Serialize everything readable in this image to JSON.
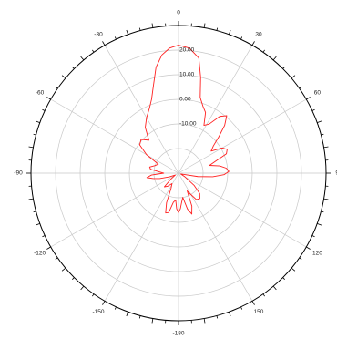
{
  "colors": {
    "background": "#ffffff",
    "outer_circle": "#000000",
    "grid": "#c8c8c8",
    "trace": "#ff2020",
    "text": "#222222"
  },
  "chart_data": {
    "type": "polar-line",
    "title": "",
    "angle_unit": "degrees",
    "angle_zero": "top",
    "angle_direction": "clockwise",
    "angle_ticks": [
      0,
      30,
      60,
      90,
      120,
      150,
      180,
      -150,
      -120,
      -90,
      -60,
      -30
    ],
    "angle_tick_labels": [
      "0",
      "30",
      "60",
      "90",
      "120",
      "150",
      "-180",
      "-150",
      "-120",
      "-90",
      "-60",
      "-30"
    ],
    "r_min": -30,
    "r_max": 30,
    "r_ticks": [
      -20,
      -10,
      0,
      10,
      20
    ],
    "r_tick_labels": [
      "-20.00",
      "-10.00",
      "0.00",
      "10.00",
      "20.00"
    ],
    "grid": true,
    "series": [
      {
        "name": "",
        "points": [
          {
            "theta": 0,
            "r": 22.0
          },
          {
            "theta": 5,
            "r": 21.0
          },
          {
            "theta": 10,
            "r": 17.5
          },
          {
            "theta": 13,
            "r": 10.0
          },
          {
            "theta": 16,
            "r": 2.0
          },
          {
            "theta": 20,
            "r": -1.0
          },
          {
            "theta": 24,
            "r": -3.0
          },
          {
            "theta": 28,
            "r": -8.0
          },
          {
            "theta": 32,
            "r": -6.5
          },
          {
            "theta": 36,
            "r": -1.5
          },
          {
            "theta": 40,
            "r": 0.5
          },
          {
            "theta": 44,
            "r": -3.0
          },
          {
            "theta": 48,
            "r": -8.0
          },
          {
            "theta": 52,
            "r": -12.0
          },
          {
            "theta": 56,
            "r": -14.0
          },
          {
            "theta": 60,
            "r": -9.5
          },
          {
            "theta": 64,
            "r": -8.0
          },
          {
            "theta": 68,
            "r": -9.0
          },
          {
            "theta": 72,
            "r": -14.0
          },
          {
            "theta": 76,
            "r": -17.0
          },
          {
            "theta": 80,
            "r": -13.0
          },
          {
            "theta": 84,
            "r": -10.5
          },
          {
            "theta": 88,
            "r": -9.5
          },
          {
            "theta": 92,
            "r": -11.5
          },
          {
            "theta": 96,
            "r": -16.0
          },
          {
            "theta": 100,
            "r": -22.0
          },
          {
            "theta": 104,
            "r": -28.0
          },
          {
            "theta": 110,
            "r": -29.0
          },
          {
            "theta": 120,
            "r": -27.0
          },
          {
            "theta": 128,
            "r": -22.0
          },
          {
            "theta": 134,
            "r": -18.0
          },
          {
            "theta": 140,
            "r": -16.5
          },
          {
            "theta": 146,
            "r": -17.0
          },
          {
            "theta": 150,
            "r": -20.0
          },
          {
            "theta": 154,
            "r": -22.0
          },
          {
            "theta": 158,
            "r": -15.5
          },
          {
            "theta": 162,
            "r": -12.5
          },
          {
            "theta": 166,
            "r": -15.0
          },
          {
            "theta": 170,
            "r": -20.0
          },
          {
            "theta": 174,
            "r": -18.0
          },
          {
            "theta": 177,
            "r": -15.5
          },
          {
            "theta": 180,
            "r": -14.0
          },
          {
            "theta": 183,
            "r": -15.5
          },
          {
            "theta": 186,
            "r": -19.0
          },
          {
            "theta": 190,
            "r": -18.0
          },
          {
            "theta": 194,
            "r": -13.5
          },
          {
            "theta": 198,
            "r": -13.0
          },
          {
            "theta": 202,
            "r": -17.0
          },
          {
            "theta": 206,
            "r": -23.0
          },
          {
            "theta": 212,
            "r": -25.0
          },
          {
            "theta": 220,
            "r": -23.0
          },
          {
            "theta": 226,
            "r": -22.0
          },
          {
            "theta": 232,
            "r": -26.0
          },
          {
            "theta": 240,
            "r": -28.5
          },
          {
            "theta": 248,
            "r": -26.0
          },
          {
            "theta": 254,
            "r": -22.0
          },
          {
            "theta": 258,
            "r": -19.5
          },
          {
            "theta": 262,
            "r": -17.0
          },
          {
            "theta": 266,
            "r": -19.0
          },
          {
            "theta": 270,
            "r": -24.0
          },
          {
            "theta": 274,
            "r": -22.0
          },
          {
            "theta": 278,
            "r": -18.5
          },
          {
            "theta": 282,
            "r": -18.0
          },
          {
            "theta": 288,
            "r": -20.0
          },
          {
            "theta": 294,
            "r": -21.0
          },
          {
            "theta": 300,
            "r": -15.0
          },
          {
            "theta": 306,
            "r": -10.5
          },
          {
            "theta": 312,
            "r": -9.5
          },
          {
            "theta": 318,
            "r": -12.0
          },
          {
            "theta": 324,
            "r": -7.0
          },
          {
            "theta": 330,
            "r": -4.0
          },
          {
            "theta": 336,
            "r": -1.0
          },
          {
            "theta": 340,
            "r": 2.0
          },
          {
            "theta": 344,
            "r": 7.0
          },
          {
            "theta": 348,
            "r": 14.0
          },
          {
            "theta": 352,
            "r": 18.5
          },
          {
            "theta": 356,
            "r": 21.0
          },
          {
            "theta": 360,
            "r": 22.0
          }
        ]
      }
    ]
  }
}
